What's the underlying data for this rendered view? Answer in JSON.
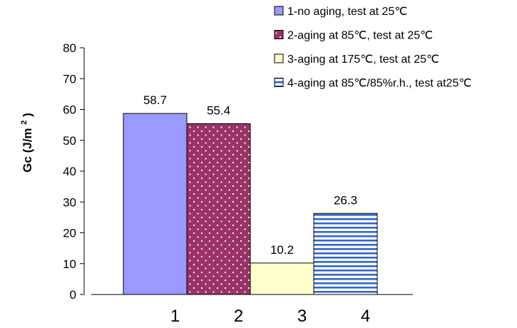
{
  "chart_data": {
    "type": "bar",
    "title": "",
    "xlabel": "",
    "ylabel": "Gc (J/m 2 )",
    "ylabel_parts": {
      "main": "Gc (J/m",
      "superscript": "2",
      "close": ")"
    },
    "ylim": [
      0,
      80
    ],
    "yticks": [
      0,
      10,
      20,
      30,
      40,
      50,
      60,
      70,
      80
    ],
    "categories": [
      "1",
      "2",
      "3",
      "4"
    ],
    "values": [
      58.7,
      55.4,
      10.2,
      26.3
    ],
    "value_labels": [
      "58.7",
      "55.4",
      "10.2",
      "26.3"
    ],
    "grid": false,
    "legend_position": "top-right",
    "series": [
      {
        "name": "1-no aging, test at 25℃",
        "value": 58.7,
        "color": "#9999ff",
        "pattern": "solid"
      },
      {
        "name": "2-aging at 85℃, test at 25℃",
        "value": 55.4,
        "color": "#993366",
        "pattern": "dots"
      },
      {
        "name": "3-aging at 175℃, test at 25℃",
        "value": 10.2,
        "color": "#ffffcc",
        "pattern": "solid"
      },
      {
        "name": "4-aging at 85℃/85%r.h., test at25℃",
        "value": 26.3,
        "color": "#3366cc",
        "pattern": "horizontal-lines"
      }
    ]
  }
}
